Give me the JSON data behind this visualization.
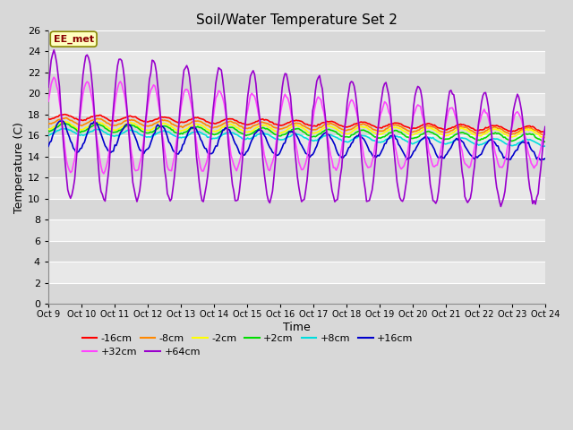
{
  "title": "Soil/Water Temperature Set 2",
  "xlabel": "Time",
  "ylabel": "Temperature (C)",
  "annotation": "EE_met",
  "ylim": [
    0,
    26
  ],
  "xlim": [
    0,
    15
  ],
  "xtick_labels": [
    "Oct 9",
    "Oct 10",
    "Oct 11",
    "Oct 12",
    "Oct 13",
    "Oct 14",
    "Oct 15",
    "Oct 16",
    "Oct 17",
    "Oct 18",
    "Oct 19",
    "Oct 20",
    "Oct 21",
    "Oct 22",
    "Oct 23",
    "Oct 24"
  ],
  "legend": [
    {
      "label": "-16cm",
      "color": "#ff0000"
    },
    {
      "label": "-8cm",
      "color": "#ff8800"
    },
    {
      "label": "-2cm",
      "color": "#ffff00"
    },
    {
      "label": "+2cm",
      "color": "#00dd00"
    },
    {
      "label": "+8cm",
      "color": "#00dddd"
    },
    {
      "label": "+16cm",
      "color": "#0000cc"
    },
    {
      "label": "+32cm",
      "color": "#ff44ff"
    },
    {
      "label": "+64cm",
      "color": "#9900cc"
    }
  ],
  "fig_bg": "#d8d8d8",
  "plot_bg_light": "#e8e8e8",
  "plot_bg_dark": "#d8d8d8",
  "grid_color": "#ffffff"
}
